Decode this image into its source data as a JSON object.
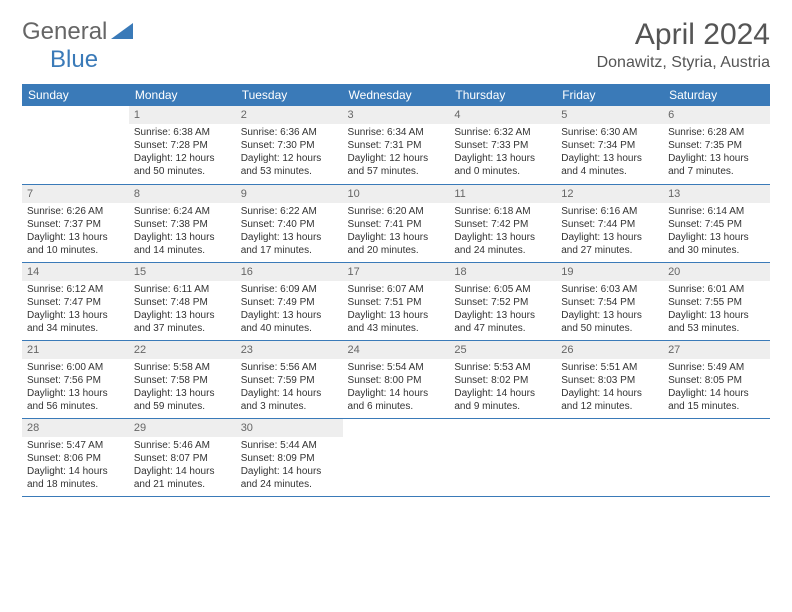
{
  "logo": {
    "text_general": "General",
    "text_blue": "Blue"
  },
  "title": "April 2024",
  "location": "Donawitz, Styria, Austria",
  "colors": {
    "header_bg": "#3a7ab8",
    "header_text": "#ffffff",
    "daynum_bg": "#eeeeee",
    "daynum_text": "#666666",
    "cell_text": "#333333",
    "row_border": "#3a7ab8",
    "background": "#ffffff"
  },
  "day_headers": [
    "Sunday",
    "Monday",
    "Tuesday",
    "Wednesday",
    "Thursday",
    "Friday",
    "Saturday"
  ],
  "weeks": [
    [
      {
        "n": "",
        "sr": "",
        "ss": "",
        "dl": ""
      },
      {
        "n": "1",
        "sr": "Sunrise: 6:38 AM",
        "ss": "Sunset: 7:28 PM",
        "dl": "Daylight: 12 hours and 50 minutes."
      },
      {
        "n": "2",
        "sr": "Sunrise: 6:36 AM",
        "ss": "Sunset: 7:30 PM",
        "dl": "Daylight: 12 hours and 53 minutes."
      },
      {
        "n": "3",
        "sr": "Sunrise: 6:34 AM",
        "ss": "Sunset: 7:31 PM",
        "dl": "Daylight: 12 hours and 57 minutes."
      },
      {
        "n": "4",
        "sr": "Sunrise: 6:32 AM",
        "ss": "Sunset: 7:33 PM",
        "dl": "Daylight: 13 hours and 0 minutes."
      },
      {
        "n": "5",
        "sr": "Sunrise: 6:30 AM",
        "ss": "Sunset: 7:34 PM",
        "dl": "Daylight: 13 hours and 4 minutes."
      },
      {
        "n": "6",
        "sr": "Sunrise: 6:28 AM",
        "ss": "Sunset: 7:35 PM",
        "dl": "Daylight: 13 hours and 7 minutes."
      }
    ],
    [
      {
        "n": "7",
        "sr": "Sunrise: 6:26 AM",
        "ss": "Sunset: 7:37 PM",
        "dl": "Daylight: 13 hours and 10 minutes."
      },
      {
        "n": "8",
        "sr": "Sunrise: 6:24 AM",
        "ss": "Sunset: 7:38 PM",
        "dl": "Daylight: 13 hours and 14 minutes."
      },
      {
        "n": "9",
        "sr": "Sunrise: 6:22 AM",
        "ss": "Sunset: 7:40 PM",
        "dl": "Daylight: 13 hours and 17 minutes."
      },
      {
        "n": "10",
        "sr": "Sunrise: 6:20 AM",
        "ss": "Sunset: 7:41 PM",
        "dl": "Daylight: 13 hours and 20 minutes."
      },
      {
        "n": "11",
        "sr": "Sunrise: 6:18 AM",
        "ss": "Sunset: 7:42 PM",
        "dl": "Daylight: 13 hours and 24 minutes."
      },
      {
        "n": "12",
        "sr": "Sunrise: 6:16 AM",
        "ss": "Sunset: 7:44 PM",
        "dl": "Daylight: 13 hours and 27 minutes."
      },
      {
        "n": "13",
        "sr": "Sunrise: 6:14 AM",
        "ss": "Sunset: 7:45 PM",
        "dl": "Daylight: 13 hours and 30 minutes."
      }
    ],
    [
      {
        "n": "14",
        "sr": "Sunrise: 6:12 AM",
        "ss": "Sunset: 7:47 PM",
        "dl": "Daylight: 13 hours and 34 minutes."
      },
      {
        "n": "15",
        "sr": "Sunrise: 6:11 AM",
        "ss": "Sunset: 7:48 PM",
        "dl": "Daylight: 13 hours and 37 minutes."
      },
      {
        "n": "16",
        "sr": "Sunrise: 6:09 AM",
        "ss": "Sunset: 7:49 PM",
        "dl": "Daylight: 13 hours and 40 minutes."
      },
      {
        "n": "17",
        "sr": "Sunrise: 6:07 AM",
        "ss": "Sunset: 7:51 PM",
        "dl": "Daylight: 13 hours and 43 minutes."
      },
      {
        "n": "18",
        "sr": "Sunrise: 6:05 AM",
        "ss": "Sunset: 7:52 PM",
        "dl": "Daylight: 13 hours and 47 minutes."
      },
      {
        "n": "19",
        "sr": "Sunrise: 6:03 AM",
        "ss": "Sunset: 7:54 PM",
        "dl": "Daylight: 13 hours and 50 minutes."
      },
      {
        "n": "20",
        "sr": "Sunrise: 6:01 AM",
        "ss": "Sunset: 7:55 PM",
        "dl": "Daylight: 13 hours and 53 minutes."
      }
    ],
    [
      {
        "n": "21",
        "sr": "Sunrise: 6:00 AM",
        "ss": "Sunset: 7:56 PM",
        "dl": "Daylight: 13 hours and 56 minutes."
      },
      {
        "n": "22",
        "sr": "Sunrise: 5:58 AM",
        "ss": "Sunset: 7:58 PM",
        "dl": "Daylight: 13 hours and 59 minutes."
      },
      {
        "n": "23",
        "sr": "Sunrise: 5:56 AM",
        "ss": "Sunset: 7:59 PM",
        "dl": "Daylight: 14 hours and 3 minutes."
      },
      {
        "n": "24",
        "sr": "Sunrise: 5:54 AM",
        "ss": "Sunset: 8:00 PM",
        "dl": "Daylight: 14 hours and 6 minutes."
      },
      {
        "n": "25",
        "sr": "Sunrise: 5:53 AM",
        "ss": "Sunset: 8:02 PM",
        "dl": "Daylight: 14 hours and 9 minutes."
      },
      {
        "n": "26",
        "sr": "Sunrise: 5:51 AM",
        "ss": "Sunset: 8:03 PM",
        "dl": "Daylight: 14 hours and 12 minutes."
      },
      {
        "n": "27",
        "sr": "Sunrise: 5:49 AM",
        "ss": "Sunset: 8:05 PM",
        "dl": "Daylight: 14 hours and 15 minutes."
      }
    ],
    [
      {
        "n": "28",
        "sr": "Sunrise: 5:47 AM",
        "ss": "Sunset: 8:06 PM",
        "dl": "Daylight: 14 hours and 18 minutes."
      },
      {
        "n": "29",
        "sr": "Sunrise: 5:46 AM",
        "ss": "Sunset: 8:07 PM",
        "dl": "Daylight: 14 hours and 21 minutes."
      },
      {
        "n": "30",
        "sr": "Sunrise: 5:44 AM",
        "ss": "Sunset: 8:09 PM",
        "dl": "Daylight: 14 hours and 24 minutes."
      },
      {
        "n": "",
        "sr": "",
        "ss": "",
        "dl": ""
      },
      {
        "n": "",
        "sr": "",
        "ss": "",
        "dl": ""
      },
      {
        "n": "",
        "sr": "",
        "ss": "",
        "dl": ""
      },
      {
        "n": "",
        "sr": "",
        "ss": "",
        "dl": ""
      }
    ]
  ]
}
